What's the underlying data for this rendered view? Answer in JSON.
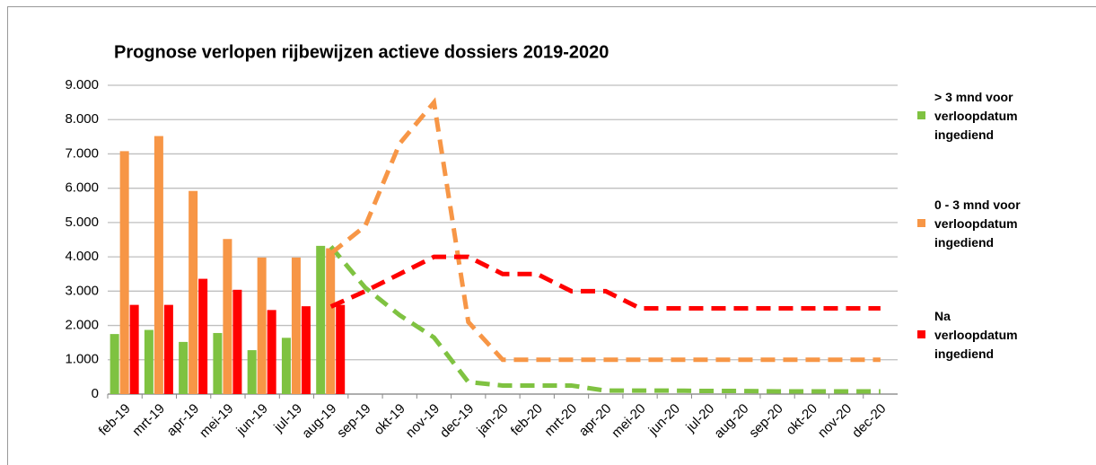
{
  "chart_data": {
    "type": "bar",
    "title": "Prognose verlopen rijbewijzen actieve dossiers 2019-2020",
    "categories": [
      "feb-19",
      "mrt-19",
      "apr-19",
      "mei-19",
      "jun-19",
      "jul-19",
      "aug-19",
      "sep-19",
      "okt-19",
      "nov-19",
      "dec-19",
      "jan-20",
      "feb-20",
      "mrt-20",
      "apr-20",
      "mei-20",
      "jun-20",
      "jul-20",
      "aug-20",
      "sep-20",
      "okt-20",
      "nov-20",
      "dec-20"
    ],
    "series": [
      {
        "name": "> 3 mnd voor verloopdatum ingediend",
        "color": "#7fc241",
        "values": [
          1750,
          1870,
          1520,
          1780,
          1280,
          1640,
          4320,
          null,
          null,
          null,
          null,
          null,
          null,
          null,
          null,
          null,
          null,
          null,
          null,
          null,
          null,
          null,
          null
        ],
        "forecast": [
          null,
          null,
          null,
          null,
          null,
          null,
          4300,
          3100,
          2300,
          1650,
          350,
          250,
          250,
          250,
          100,
          100,
          100,
          90,
          90,
          80,
          80,
          80,
          80
        ]
      },
      {
        "name": "0 - 3 mnd voor verloopdatum ingediend",
        "color": "#f79646",
        "values": [
          7080,
          7520,
          5920,
          4520,
          3980,
          3980,
          4250,
          null,
          null,
          null,
          null,
          null,
          null,
          null,
          null,
          null,
          null,
          null,
          null,
          null,
          null,
          null,
          null
        ],
        "forecast": [
          null,
          null,
          null,
          null,
          null,
          null,
          4100,
          4900,
          7300,
          8500,
          2100,
          1000,
          1000,
          1000,
          1000,
          1000,
          1000,
          1000,
          1000,
          1000,
          1000,
          1000,
          1000
        ]
      },
      {
        "name": "Na verloopdatum ingediend",
        "color": "#ff0000",
        "values": [
          2600,
          2600,
          3360,
          3040,
          2450,
          2560,
          2600,
          null,
          null,
          null,
          null,
          null,
          null,
          null,
          null,
          null,
          null,
          null,
          null,
          null,
          null,
          null,
          null
        ],
        "forecast": [
          null,
          null,
          null,
          null,
          null,
          null,
          2550,
          3000,
          3500,
          4000,
          4000,
          3500,
          3500,
          3000,
          3000,
          2500,
          2500,
          2500,
          2500,
          2500,
          2500,
          2500,
          2500
        ]
      }
    ],
    "ylim": [
      0,
      9000
    ],
    "yticks": [
      0,
      {
        "value": 1000,
        "label": "1.000"
      },
      {
        "value": 2000,
        "label": "2.000"
      },
      {
        "value": 3000,
        "label": "3.000"
      },
      {
        "value": 4000,
        "label": "4.000"
      },
      {
        "value": 5000,
        "label": "5.000"
      },
      {
        "value": 6000,
        "label": "6.000"
      },
      {
        "value": 7000,
        "label": "7.000"
      },
      {
        "value": 8000,
        "label": "8.000"
      },
      {
        "value": 9000,
        "label": "9.000"
      }
    ],
    "grid": true,
    "legend": "right"
  }
}
